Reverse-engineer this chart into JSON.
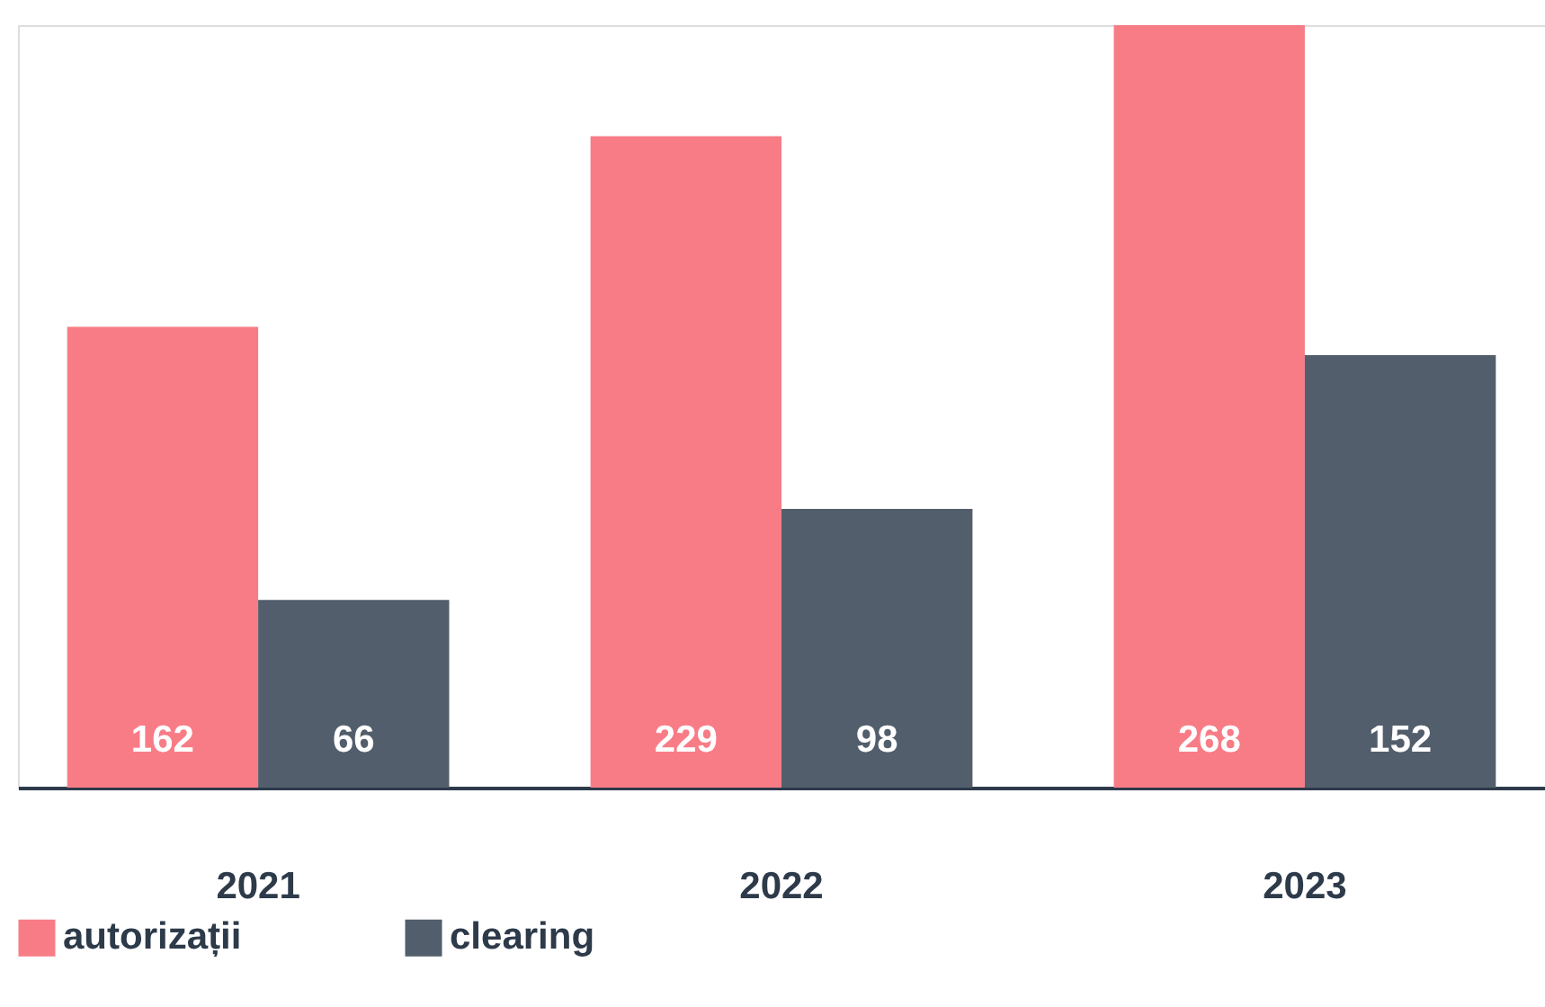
{
  "chart_data": {
    "type": "bar",
    "categories": [
      "2021",
      "2022",
      "2023"
    ],
    "series": [
      {
        "name": "autorizații",
        "color": "#f87c86",
        "values": [
          162,
          229,
          268
        ]
      },
      {
        "name": "clearing",
        "color": "#525e6b",
        "values": [
          66,
          98,
          152
        ]
      }
    ],
    "data_labels": true,
    "legend": "bottom",
    "grid": false
  }
}
